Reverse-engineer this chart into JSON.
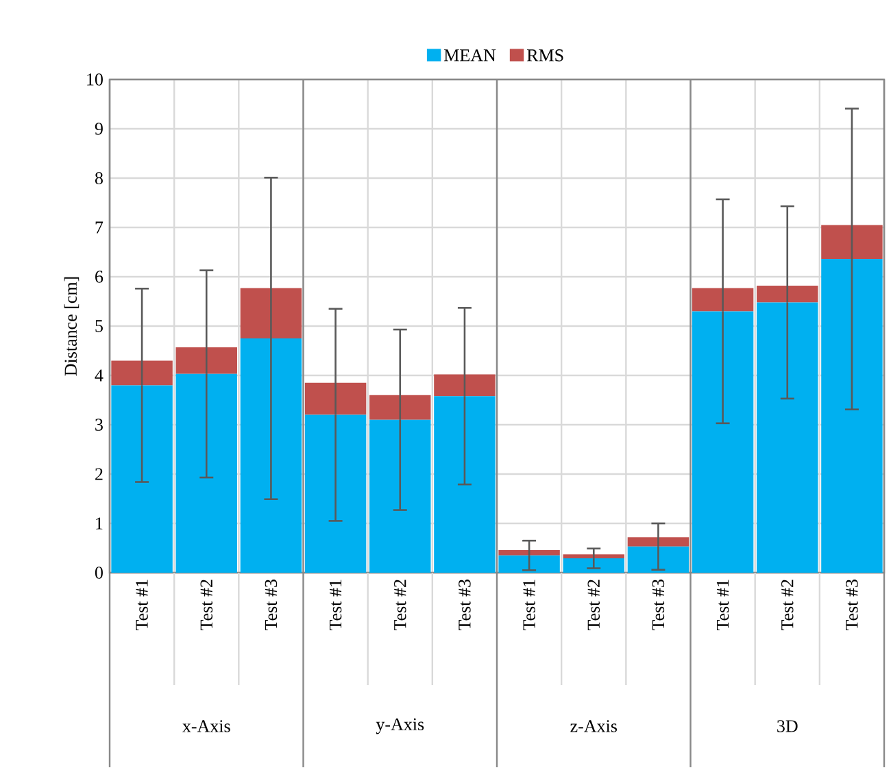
{
  "chart_data": {
    "type": "bar",
    "stacked": true,
    "ylabel": "Distance [cm]",
    "categories": [
      "Test #1",
      "Test #2",
      "Test #3",
      "Test #1",
      "Test #2",
      "Test #3",
      "Test #1",
      "Test #2",
      "Test #3",
      "Test #1",
      "Test #2",
      "Test #3"
    ],
    "series": [
      {
        "name": "MEAN",
        "color": "#00b0f0",
        "values": [
          3.8,
          4.03,
          4.75,
          3.2,
          3.1,
          3.58,
          0.35,
          0.29,
          0.53,
          5.3,
          5.48,
          6.36
        ],
        "errors": [
          1.96,
          2.1,
          3.26,
          2.15,
          1.83,
          1.79,
          0.3,
          0.2,
          0.47,
          2.27,
          1.95,
          3.05
        ]
      },
      {
        "name": "RMS",
        "color": "#c0504d",
        "values": [
          0.5,
          0.54,
          1.02,
          0.65,
          0.5,
          0.44,
          0.11,
          0.08,
          0.19,
          0.47,
          0.34,
          0.69
        ]
      }
    ],
    "annotations": [
      "x-Axis",
      "y-Axis",
      "z-Axis",
      "3D"
    ],
    "ylim": [
      0,
      10
    ],
    "yticks": [
      0,
      1,
      2,
      3,
      4,
      5,
      6,
      7,
      8,
      9,
      10
    ],
    "grid": true,
    "legend": "top"
  }
}
